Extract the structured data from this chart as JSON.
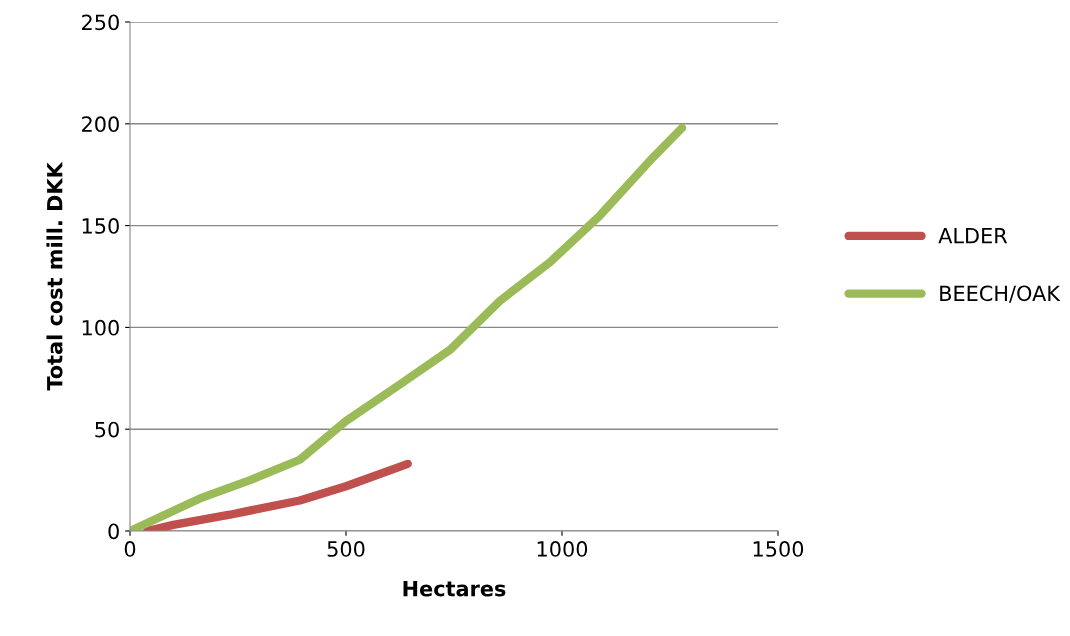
{
  "chart_data": {
    "type": "line",
    "xlabel": "Hectares",
    "ylabel": "Total cost mill. DKK",
    "xlim": [
      0,
      1500
    ],
    "xticks": [
      0,
      500,
      1000,
      1500
    ],
    "ylim": [
      0,
      250
    ],
    "yticks": [
      0,
      50,
      100,
      150,
      200,
      250
    ],
    "grid": "y",
    "legend": "right",
    "marker": "none",
    "line_style": "solid",
    "series": [
      {
        "name": "ALDER",
        "color": "#c0504d",
        "x": [
          40,
          100,
          231,
          393,
          500,
          643
        ],
        "values": [
          0,
          3,
          8,
          15,
          22,
          33
        ]
      },
      {
        "name": "BEECH/OAK",
        "color": "#9bbb59",
        "x": [
          0,
          162,
          278,
          393,
          500,
          625,
          741,
          856,
          972,
          1088,
          1204,
          1278
        ],
        "values": [
          0,
          16,
          25,
          35,
          54,
          72,
          89,
          113,
          132,
          155,
          182,
          198
        ]
      }
    ]
  }
}
